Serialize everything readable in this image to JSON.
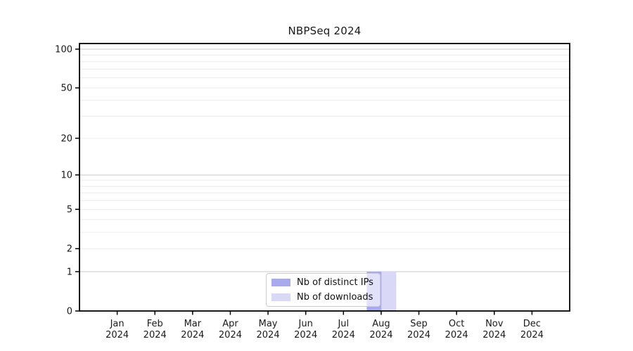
{
  "colors": {
    "background": "#ffffff",
    "axis": "#000000",
    "grid_major": "#c8c8c8",
    "grid_minor": "#ececec",
    "text": "#1a1a1a",
    "legend_border": "#cccccc"
  },
  "chart_data": {
    "type": "bar",
    "title": "NBPSeq 2024",
    "xlabel": "",
    "ylabel": "",
    "scale": "log1p",
    "grid": true,
    "legend_position": "lower center",
    "ylim": [
      0,
      100
    ],
    "y_ticks": [
      0,
      1,
      2,
      5,
      10,
      20,
      50,
      100
    ],
    "categories": [
      "Jan",
      "Feb",
      "Mar",
      "Apr",
      "May",
      "Jun",
      "Jul",
      "Aug",
      "Sep",
      "Oct",
      "Nov",
      "Dec"
    ],
    "x_tick_second_line": [
      "2024",
      "2024",
      "2024",
      "2024",
      "2024",
      "2024",
      "2024",
      "2024",
      "2024",
      "2024",
      "2024",
      "2024"
    ],
    "series": [
      {
        "name": "Nb of distinct IPs",
        "color": "#a9a9ed",
        "values": [
          0,
          0,
          0,
          0,
          0,
          0,
          0,
          1,
          0,
          0,
          0,
          0
        ]
      },
      {
        "name": "Nb of downloads",
        "color": "#d9d9f7",
        "values": [
          0,
          0,
          0,
          0,
          0,
          0,
          0,
          1,
          0,
          0,
          0,
          0
        ]
      }
    ]
  }
}
